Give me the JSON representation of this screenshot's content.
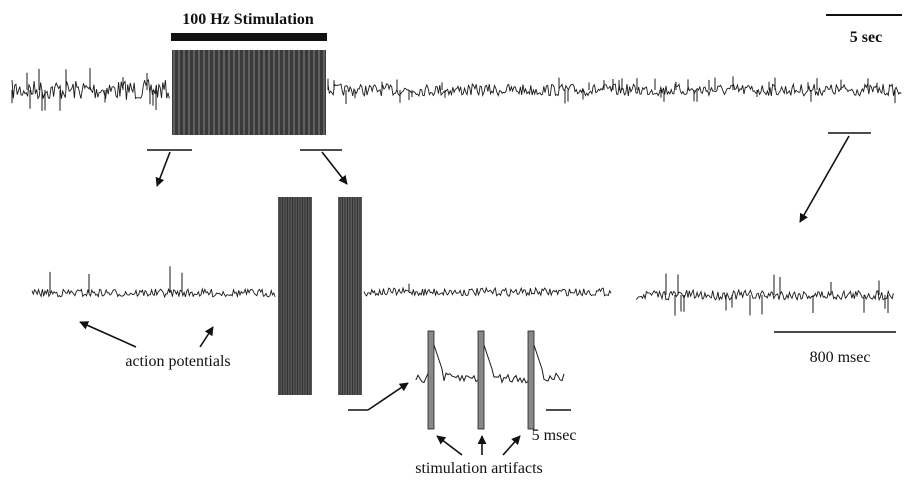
{
  "labels": {
    "stimulation": "100 Hz Stimulation",
    "scale_top": "5 sec",
    "scale_middle": "800 msec",
    "scale_inset": "5 msec",
    "action_potentials": "action potentials",
    "artifacts": "stimulation artifacts"
  },
  "colors": {
    "ink": "#111111",
    "trace": "#1a1a1a",
    "artifact_fill": "#555555",
    "background": "#ffffff"
  },
  "icons": {
    "pointer": "arrow-icon"
  }
}
